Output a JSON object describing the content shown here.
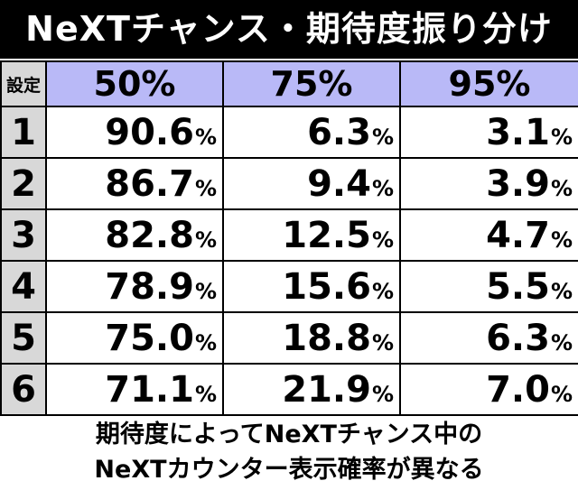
{
  "title": "NeXTチャンス・期待度振り分け",
  "table": {
    "header_label": "設定",
    "columns": [
      "50%",
      "75%",
      "95%"
    ],
    "percent_sign": "%",
    "rows": [
      {
        "setting": "1",
        "values": [
          "90.6",
          "6.3",
          "3.1"
        ]
      },
      {
        "setting": "2",
        "values": [
          "86.7",
          "9.4",
          "3.9"
        ]
      },
      {
        "setting": "3",
        "values": [
          "82.8",
          "12.5",
          "4.7"
        ]
      },
      {
        "setting": "4",
        "values": [
          "78.9",
          "15.6",
          "5.5"
        ]
      },
      {
        "setting": "5",
        "values": [
          "75.0",
          "18.8",
          "6.3"
        ]
      },
      {
        "setting": "6",
        "values": [
          "71.1",
          "21.9",
          "7.0"
        ]
      }
    ]
  },
  "note": {
    "line1": "期待度によってNeXTチャンス中の",
    "line2": "NeXTカウンター表示確率が異なる"
  },
  "colors": {
    "header_bg": "#b9b9f7",
    "label_bg": "#d8d8d8",
    "title_bg": "#000000"
  }
}
